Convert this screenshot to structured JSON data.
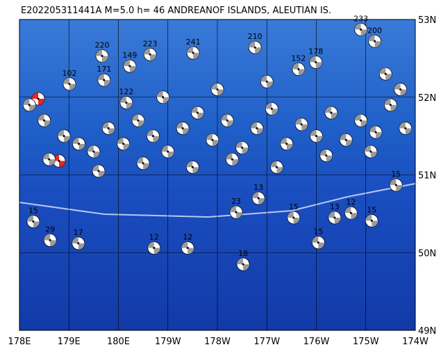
{
  "map_data": {
    "title": "E202205311441A M=5.0 h= 46 ANDREANOF ISLANDS, ALEUTIAN IS.",
    "lonlim": [
      178,
      186
    ],
    "latlim": [
      49,
      53
    ],
    "lonticks": [
      {
        "value": 178,
        "label": "178E"
      },
      {
        "value": 179,
        "label": "179E"
      },
      {
        "value": 180,
        "label": "180E"
      },
      {
        "value": 181,
        "label": "179W"
      },
      {
        "value": 182,
        "label": "178W"
      },
      {
        "value": 183,
        "label": "177W"
      },
      {
        "value": 184,
        "label": "176W"
      },
      {
        "value": 185,
        "label": "175W"
      },
      {
        "value": 186,
        "label": "174W"
      }
    ],
    "latticks": [
      {
        "value": 49,
        "label": "49N"
      },
      {
        "value": 50,
        "label": "50N"
      },
      {
        "value": 51,
        "label": "51N"
      },
      {
        "value": 52,
        "label": "52N"
      },
      {
        "value": 53,
        "label": "53N"
      }
    ],
    "grid": true,
    "ball_color": "#9a9a9a",
    "events": [
      {
        "label": 220,
        "lon": 179.67,
        "lat": 52.53
      },
      {
        "label": 223,
        "lon": 180.64,
        "lat": 52.55
      },
      {
        "label": 241,
        "lon": 181.51,
        "lat": 52.57
      },
      {
        "label": 210,
        "lon": 182.76,
        "lat": 52.64
      },
      {
        "label": 233,
        "lon": 184.9,
        "lat": 52.87
      },
      {
        "label": 200,
        "lon": 185.18,
        "lat": 52.72
      },
      {
        "label": 149,
        "lon": 180.23,
        "lat": 52.4
      },
      {
        "label": 102,
        "lon": 179.01,
        "lat": 52.17
      },
      {
        "label": 171,
        "lon": 179.71,
        "lat": 52.22
      },
      {
        "label": 178,
        "lon": 183.99,
        "lat": 52.45
      },
      {
        "label": 152,
        "lon": 183.64,
        "lat": 52.36
      },
      {
        "label": 122,
        "lon": 180.16,
        "lat": 51.93
      },
      {
        "label": 15,
        "lon": 185.61,
        "lat": 50.87
      },
      {
        "label": 15,
        "lon": 178.28,
        "lat": 50.4
      },
      {
        "label": 29,
        "lon": 178.62,
        "lat": 50.16
      },
      {
        "label": 17,
        "lon": 179.19,
        "lat": 50.12
      },
      {
        "label": 12,
        "lon": 180.72,
        "lat": 50.06
      },
      {
        "label": 12,
        "lon": 181.4,
        "lat": 50.06
      },
      {
        "label": 18,
        "lon": 182.52,
        "lat": 49.85
      },
      {
        "label": 23,
        "lon": 182.38,
        "lat": 50.52
      },
      {
        "label": 15,
        "lon": 185.12,
        "lat": 50.41
      },
      {
        "label": 12,
        "lon": 184.7,
        "lat": 50.51
      },
      {
        "label": 13,
        "lon": 184.37,
        "lat": 50.45
      },
      {
        "label": 15,
        "lon": 183.54,
        "lat": 50.45
      },
      {
        "label": 15,
        "lon": 184.04,
        "lat": 50.13
      },
      {
        "label": 13,
        "lon": 182.83,
        "lat": 50.7
      },
      {
        "lon": 178.38,
        "lat": 51.98,
        "color": "#e8251f"
      },
      {
        "lon": 178.8,
        "lat": 51.18,
        "color": "#e8251f"
      },
      {
        "lon": 178.2,
        "lat": 51.9
      },
      {
        "lon": 178.5,
        "lat": 51.7
      },
      {
        "lon": 178.9,
        "lat": 51.5
      },
      {
        "lon": 179.2,
        "lat": 51.4
      },
      {
        "lon": 179.5,
        "lat": 51.3
      },
      {
        "lon": 179.8,
        "lat": 51.6
      },
      {
        "lon": 180.1,
        "lat": 51.4
      },
      {
        "lon": 180.4,
        "lat": 51.7
      },
      {
        "lon": 180.7,
        "lat": 51.5
      },
      {
        "lon": 181.0,
        "lat": 51.3
      },
      {
        "lon": 181.3,
        "lat": 51.6
      },
      {
        "lon": 181.6,
        "lat": 51.8
      },
      {
        "lon": 181.9,
        "lat": 51.45
      },
      {
        "lon": 182.2,
        "lat": 51.7
      },
      {
        "lon": 182.5,
        "lat": 51.35
      },
      {
        "lon": 182.8,
        "lat": 51.6
      },
      {
        "lon": 183.1,
        "lat": 51.85
      },
      {
        "lon": 183.4,
        "lat": 51.4
      },
      {
        "lon": 183.7,
        "lat": 51.65
      },
      {
        "lon": 184.0,
        "lat": 51.5
      },
      {
        "lon": 184.3,
        "lat": 51.8
      },
      {
        "lon": 184.6,
        "lat": 51.45
      },
      {
        "lon": 184.9,
        "lat": 51.7
      },
      {
        "lon": 185.2,
        "lat": 51.55
      },
      {
        "lon": 185.5,
        "lat": 51.9
      },
      {
        "lon": 185.8,
        "lat": 51.6
      },
      {
        "lon": 178.6,
        "lat": 51.2
      },
      {
        "lon": 179.6,
        "lat": 51.05
      },
      {
        "lon": 180.5,
        "lat": 51.15
      },
      {
        "lon": 181.5,
        "lat": 51.1
      },
      {
        "lon": 182.3,
        "lat": 51.2
      },
      {
        "lon": 183.2,
        "lat": 51.1
      },
      {
        "lon": 184.2,
        "lat": 51.25
      },
      {
        "lon": 185.1,
        "lat": 51.3
      },
      {
        "lon": 180.9,
        "lat": 52.0
      },
      {
        "lon": 182.0,
        "lat": 52.1
      },
      {
        "lon": 183.0,
        "lat": 52.2
      },
      {
        "lon": 185.4,
        "lat": 52.3
      },
      {
        "lon": 185.7,
        "lat": 52.1
      }
    ]
  }
}
